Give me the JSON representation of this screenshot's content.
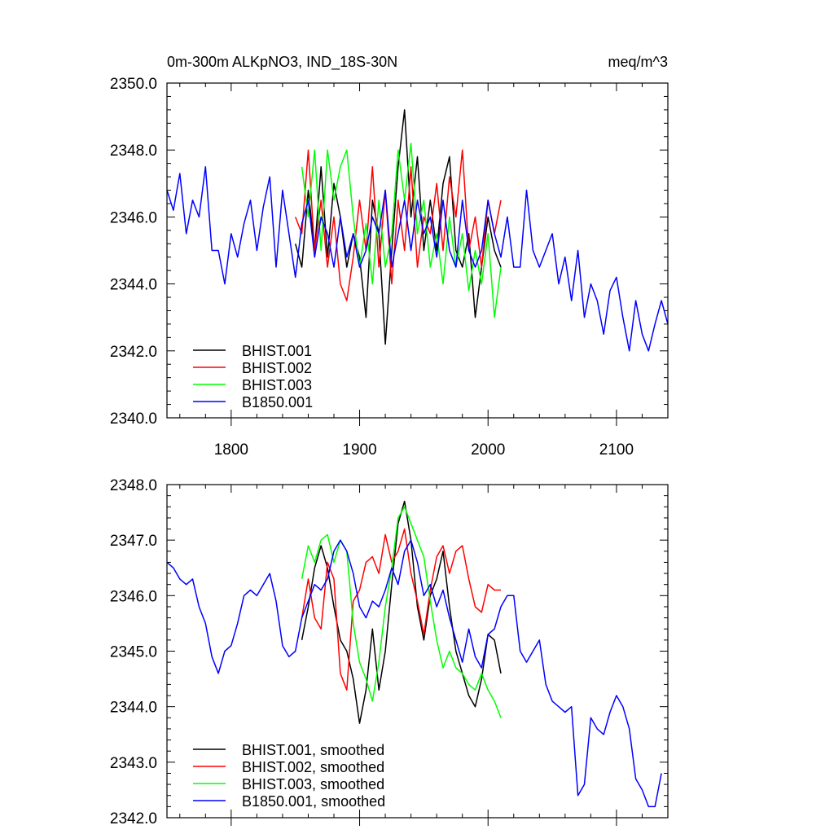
{
  "chart_data": [
    {
      "type": "line",
      "title": "0m-300m ALKpNO3, IND_18S-30N",
      "units": "meq/m^3",
      "xlim": [
        1750,
        2140
      ],
      "ylim": [
        2340,
        2350
      ],
      "x_ticks": [
        1800,
        1900,
        2000,
        2100
      ],
      "x_tick_labels": [
        "1800",
        "1900",
        "2000",
        "2100"
      ],
      "y_ticks": [
        2340,
        2342,
        2344,
        2346,
        2348,
        2350
      ],
      "y_tick_labels": [
        "2340.0",
        "2342.0",
        "2344.0",
        "2346.0",
        "2348.0",
        "2350.0"
      ],
      "legend_position": "bottom-left",
      "series": [
        {
          "name": "BHIST.001",
          "color": "#000000",
          "x": [
            1850,
            1855,
            1860,
            1865,
            1870,
            1875,
            1880,
            1885,
            1890,
            1895,
            1900,
            1905,
            1910,
            1915,
            1920,
            1925,
            1930,
            1935,
            1940,
            1945,
            1950,
            1955,
            1960,
            1965,
            1970,
            1975,
            1980,
            1985,
            1990,
            1995,
            2000,
            2005,
            2010
          ],
          "y": [
            2345.2,
            2344.5,
            2346.8,
            2345.0,
            2347.5,
            2344.8,
            2347.0,
            2346.0,
            2344.5,
            2345.5,
            2344.8,
            2343.0,
            2346.5,
            2345.5,
            2342.2,
            2345.0,
            2347.5,
            2349.2,
            2346.0,
            2347.8,
            2345.0,
            2346.5,
            2345.0,
            2347.0,
            2347.8,
            2345.0,
            2344.5,
            2345.5,
            2343.0,
            2344.5,
            2346.0,
            2345.0,
            2344.5
          ]
        },
        {
          "name": "BHIST.002",
          "color": "#ff0000",
          "x": [
            1850,
            1855,
            1860,
            1865,
            1870,
            1875,
            1880,
            1885,
            1890,
            1895,
            1900,
            1905,
            1910,
            1915,
            1920,
            1925,
            1930,
            1935,
            1940,
            1945,
            1950,
            1955,
            1960,
            1965,
            1970,
            1975,
            1980,
            1985,
            1990,
            1995,
            2000,
            2005,
            2010
          ],
          "y": [
            2346.0,
            2345.5,
            2348.0,
            2345.0,
            2346.5,
            2344.5,
            2346.0,
            2344.0,
            2343.5,
            2344.8,
            2346.5,
            2345.0,
            2347.5,
            2344.5,
            2346.8,
            2344.0,
            2346.5,
            2345.0,
            2347.5,
            2344.5,
            2346.0,
            2345.5,
            2347.0,
            2345.0,
            2347.2,
            2346.0,
            2348.0,
            2345.0,
            2346.0,
            2344.5,
            2346.5,
            2345.5,
            2346.5
          ]
        },
        {
          "name": "BHIST.003",
          "color": "#00ff00",
          "x": [
            1855,
            1860,
            1865,
            1870,
            1875,
            1880,
            1885,
            1890,
            1895,
            1900,
            1905,
            1910,
            1915,
            1920,
            1925,
            1930,
            1935,
            1940,
            1945,
            1950,
            1955,
            1960,
            1965,
            1970,
            1975,
            1980,
            1985,
            1990,
            1995,
            2000,
            2005,
            2010
          ],
          "y": [
            2347.5,
            2346.0,
            2348.0,
            2345.0,
            2348.0,
            2346.5,
            2347.5,
            2348.0,
            2346.0,
            2344.5,
            2345.8,
            2344.0,
            2346.5,
            2344.5,
            2345.5,
            2348.0,
            2346.5,
            2348.2,
            2345.5,
            2346.5,
            2344.5,
            2345.5,
            2344.0,
            2346.0,
            2344.5,
            2345.5,
            2343.8,
            2345.0,
            2344.0,
            2345.5,
            2343.0,
            2344.5
          ]
        },
        {
          "name": "B1850.001",
          "color": "#0000ff",
          "x": [
            1750,
            1755,
            1760,
            1765,
            1770,
            1775,
            1780,
            1785,
            1790,
            1795,
            1800,
            1805,
            1810,
            1815,
            1820,
            1825,
            1830,
            1835,
            1840,
            1845,
            1850,
            1855,
            1860,
            1865,
            1870,
            1875,
            1880,
            1885,
            1890,
            1895,
            1900,
            1905,
            1910,
            1915,
            1920,
            1925,
            1930,
            1935,
            1940,
            1945,
            1950,
            1955,
            1960,
            1965,
            1970,
            1975,
            1980,
            1985,
            1990,
            1995,
            2000,
            2005,
            2010,
            2015,
            2020,
            2025,
            2030,
            2035,
            2040,
            2045,
            2050,
            2055,
            2060,
            2065,
            2070,
            2075,
            2080,
            2085,
            2090,
            2095,
            2100,
            2105,
            2110,
            2115,
            2120,
            2125,
            2130,
            2135,
            2140
          ],
          "y": [
            2346.8,
            2346.2,
            2347.3,
            2345.5,
            2346.5,
            2346.0,
            2347.5,
            2345.0,
            2345.0,
            2344.0,
            2345.5,
            2344.8,
            2345.8,
            2346.5,
            2345.0,
            2346.3,
            2347.2,
            2344.5,
            2346.8,
            2345.5,
            2344.2,
            2345.8,
            2346.5,
            2344.8,
            2346.0,
            2345.5,
            2344.5,
            2346.0,
            2344.8,
            2345.5,
            2344.5,
            2345.0,
            2346.0,
            2345.5,
            2346.8,
            2344.5,
            2345.5,
            2346.5,
            2345.0,
            2346.5,
            2345.5,
            2346.0,
            2344.8,
            2346.5,
            2345.0,
            2344.5,
            2346.5,
            2345.0,
            2344.5,
            2345.0,
            2346.5,
            2345.5,
            2344.8,
            2346.0,
            2344.5,
            2344.5,
            2346.8,
            2345.0,
            2344.5,
            2345.0,
            2345.5,
            2344.0,
            2344.8,
            2343.5,
            2345.0,
            2343.0,
            2344.0,
            2343.5,
            2342.5,
            2343.8,
            2344.2,
            2343.0,
            2342.0,
            2343.5,
            2342.5,
            2342.0,
            2342.8,
            2343.5,
            2342.8
          ]
        }
      ]
    },
    {
      "type": "line",
      "xlim": [
        1750,
        2140
      ],
      "ylim": [
        2342,
        2348
      ],
      "x_ticks": [
        1800,
        1900,
        2000,
        2100
      ],
      "y_ticks": [
        2342,
        2343,
        2344,
        2345,
        2346,
        2347,
        2348
      ],
      "y_tick_labels": [
        "2342.0",
        "2343.0",
        "2344.0",
        "2345.0",
        "2346.0",
        "2347.0",
        "2348.0"
      ],
      "legend_position": "bottom-left",
      "series": [
        {
          "name": "BHIST.001, smoothed",
          "color": "#000000",
          "x": [
            1855,
            1860,
            1865,
            1870,
            1875,
            1880,
            1885,
            1890,
            1895,
            1900,
            1905,
            1910,
            1915,
            1920,
            1925,
            1930,
            1935,
            1940,
            1945,
            1950,
            1955,
            1960,
            1965,
            1970,
            1975,
            1980,
            1985,
            1990,
            1995,
            2000,
            2005,
            2010
          ],
          "y": [
            2345.2,
            2345.8,
            2346.5,
            2346.9,
            2346.5,
            2345.8,
            2345.2,
            2345.0,
            2344.5,
            2343.7,
            2344.3,
            2345.4,
            2344.3,
            2345.0,
            2346.2,
            2347.3,
            2347.7,
            2347.0,
            2345.8,
            2345.2,
            2346.0,
            2346.3,
            2346.8,
            2345.8,
            2345.0,
            2344.6,
            2344.2,
            2344.0,
            2344.5,
            2345.3,
            2345.2,
            2344.6
          ]
        },
        {
          "name": "BHIST.002, smoothed",
          "color": "#ff0000",
          "x": [
            1855,
            1860,
            1865,
            1870,
            1875,
            1880,
            1885,
            1890,
            1895,
            1900,
            1905,
            1910,
            1915,
            1920,
            1925,
            1930,
            1935,
            1940,
            1945,
            1950,
            1955,
            1960,
            1965,
            1970,
            1975,
            1980,
            1985,
            1990,
            1995,
            2000,
            2005,
            2010
          ],
          "y": [
            2345.6,
            2346.3,
            2345.6,
            2345.4,
            2346.6,
            2346.3,
            2344.6,
            2344.3,
            2345.9,
            2346.1,
            2346.6,
            2346.7,
            2346.4,
            2347.1,
            2346.6,
            2346.8,
            2347.2,
            2346.4,
            2345.9,
            2345.3,
            2346.1,
            2346.7,
            2346.9,
            2346.4,
            2346.8,
            2346.9,
            2346.3,
            2345.8,
            2345.7,
            2346.2,
            2346.1,
            2346.1
          ]
        },
        {
          "name": "BHIST.003, smoothed",
          "color": "#00ff00",
          "x": [
            1855,
            1860,
            1865,
            1870,
            1875,
            1880,
            1885,
            1890,
            1895,
            1900,
            1905,
            1910,
            1915,
            1920,
            1925,
            1930,
            1935,
            1940,
            1945,
            1950,
            1955,
            1960,
            1965,
            1970,
            1975,
            1980,
            1985,
            1990,
            1995,
            2000,
            2005,
            2010
          ],
          "y": [
            2346.3,
            2346.9,
            2346.6,
            2347.0,
            2347.1,
            2346.6,
            2347.0,
            2346.8,
            2345.5,
            2344.8,
            2344.5,
            2344.1,
            2344.8,
            2345.8,
            2346.5,
            2347.4,
            2347.6,
            2347.3,
            2347.0,
            2346.7,
            2345.9,
            2345.2,
            2344.7,
            2345.0,
            2344.7,
            2344.6,
            2344.4,
            2344.3,
            2344.6,
            2344.3,
            2344.1,
            2343.8
          ]
        },
        {
          "name": "B1850.001, smoothed",
          "color": "#0000ff",
          "x": [
            1750,
            1755,
            1760,
            1765,
            1770,
            1775,
            1780,
            1785,
            1790,
            1795,
            1800,
            1805,
            1810,
            1815,
            1820,
            1825,
            1830,
            1835,
            1840,
            1845,
            1850,
            1855,
            1860,
            1865,
            1870,
            1875,
            1880,
            1885,
            1890,
            1895,
            1900,
            1905,
            1910,
            1915,
            1920,
            1925,
            1930,
            1935,
            1940,
            1945,
            1950,
            1955,
            1960,
            1965,
            1970,
            1975,
            1980,
            1985,
            1990,
            1995,
            2000,
            2005,
            2010,
            2015,
            2020,
            2025,
            2030,
            2035,
            2040,
            2045,
            2050,
            2055,
            2060,
            2065,
            2070,
            2075,
            2080,
            2085,
            2090,
            2095,
            2100,
            2105,
            2110,
            2115,
            2120,
            2125,
            2130,
            2135
          ],
          "y": [
            2346.6,
            2346.5,
            2346.3,
            2346.2,
            2346.3,
            2345.8,
            2345.5,
            2344.9,
            2344.6,
            2345.0,
            2345.1,
            2345.5,
            2346.0,
            2346.1,
            2346.0,
            2346.2,
            2346.4,
            2345.9,
            2345.1,
            2344.9,
            2345.0,
            2345.6,
            2345.9,
            2346.2,
            2346.1,
            2346.3,
            2346.8,
            2347.0,
            2346.8,
            2346.4,
            2345.8,
            2345.6,
            2345.9,
            2345.8,
            2346.1,
            2346.5,
            2346.2,
            2346.8,
            2347.0,
            2346.6,
            2346.0,
            2346.2,
            2345.8,
            2346.1,
            2345.6,
            2345.2,
            2344.8,
            2345.4,
            2344.9,
            2344.7,
            2345.3,
            2345.4,
            2345.8,
            2346.0,
            2346.0,
            2345.0,
            2344.8,
            2345.0,
            2345.2,
            2344.4,
            2344.1,
            2344.0,
            2343.9,
            2344.0,
            2342.4,
            2342.6,
            2343.8,
            2343.6,
            2343.5,
            2343.9,
            2344.2,
            2344.0,
            2343.6,
            2342.7,
            2342.5,
            2342.2,
            2342.2,
            2342.8
          ]
        }
      ]
    }
  ]
}
